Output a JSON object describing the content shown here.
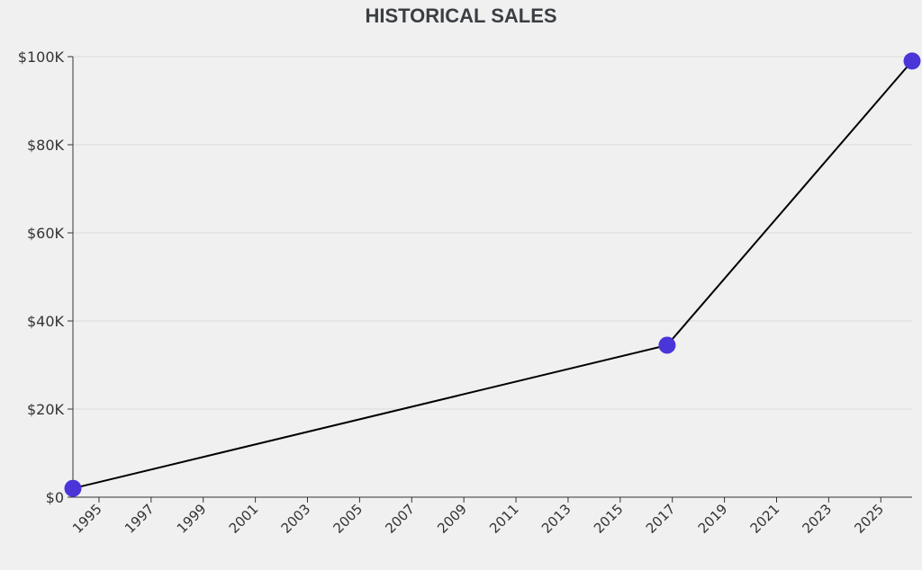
{
  "chart_data": {
    "type": "line",
    "title": "HISTORICAL SALES",
    "xlabel": "",
    "ylabel": "",
    "x_ticks": [
      "1995",
      "1997",
      "1999",
      "2001",
      "2003",
      "2005",
      "2007",
      "2009",
      "2011",
      "2013",
      "2015",
      "2017",
      "2019",
      "2021",
      "2023",
      "2025"
    ],
    "y_ticks": [
      "$0",
      "$20K",
      "$40K",
      "$60K",
      "$80K",
      "$100K"
    ],
    "xlim": [
      1994.0,
      2026.2
    ],
    "ylim": [
      0,
      100000
    ],
    "grid": "horizontal",
    "legend": "none",
    "series": [
      {
        "x": [
          1994.0,
          2016.8,
          2026.2
        ],
        "values": [
          2000,
          34500,
          99000
        ]
      }
    ],
    "colors": {
      "background": "#f0f0f0",
      "line": "#000000",
      "point": "#4a35d8",
      "grid": "#dcdcdc",
      "axis": "#333333",
      "title": "#3a3f44"
    }
  }
}
